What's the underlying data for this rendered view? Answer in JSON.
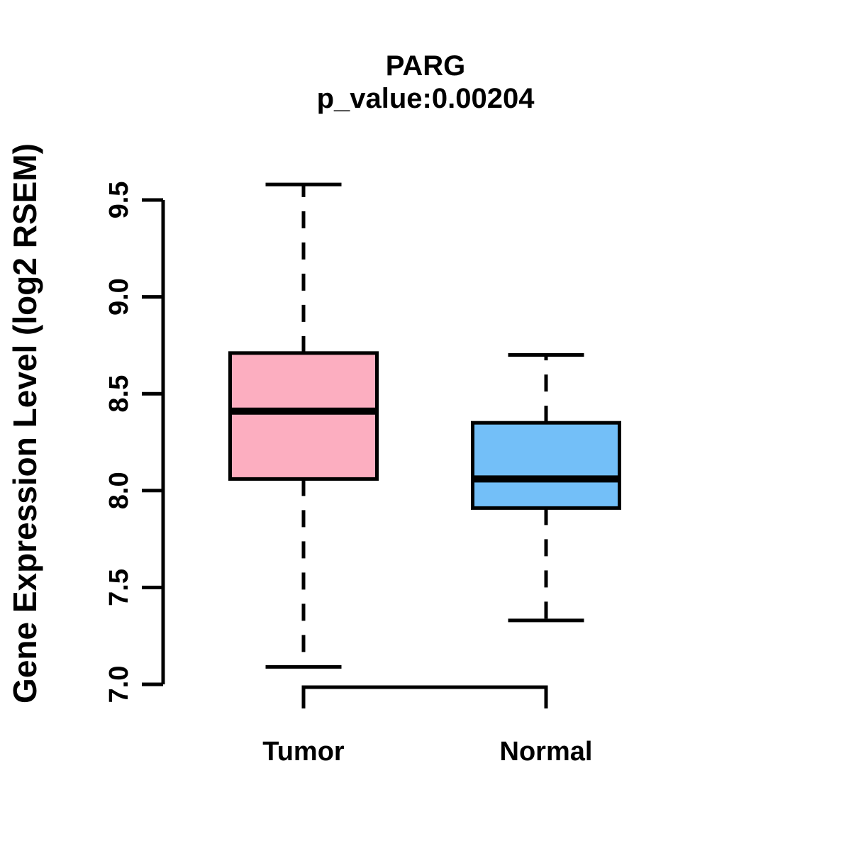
{
  "chart_data": {
    "type": "boxplot",
    "title": "PARG",
    "subtitle": "p_value:0.00204",
    "p_value": 0.00204,
    "ylabel": "Gene Expression Level (log2 RSEM)",
    "xlabel": "",
    "categories": [
      "Tumor",
      "Normal"
    ],
    "series": [
      {
        "name": "Tumor",
        "color": "#FCAEC0",
        "whisker_low": 7.09,
        "q1": 8.06,
        "median": 8.41,
        "q3": 8.71,
        "whisker_high": 9.58
      },
      {
        "name": "Normal",
        "color": "#73BFF8",
        "whisker_low": 7.33,
        "q1": 7.91,
        "median": 8.06,
        "q3": 8.35,
        "whisker_high": 8.7
      }
    ],
    "yticks": [
      7.0,
      7.5,
      8.0,
      8.5,
      9.0,
      9.5
    ],
    "ylim": [
      7.0,
      9.5
    ],
    "grid": false,
    "legend": "none",
    "stroke_color": "#000000"
  }
}
